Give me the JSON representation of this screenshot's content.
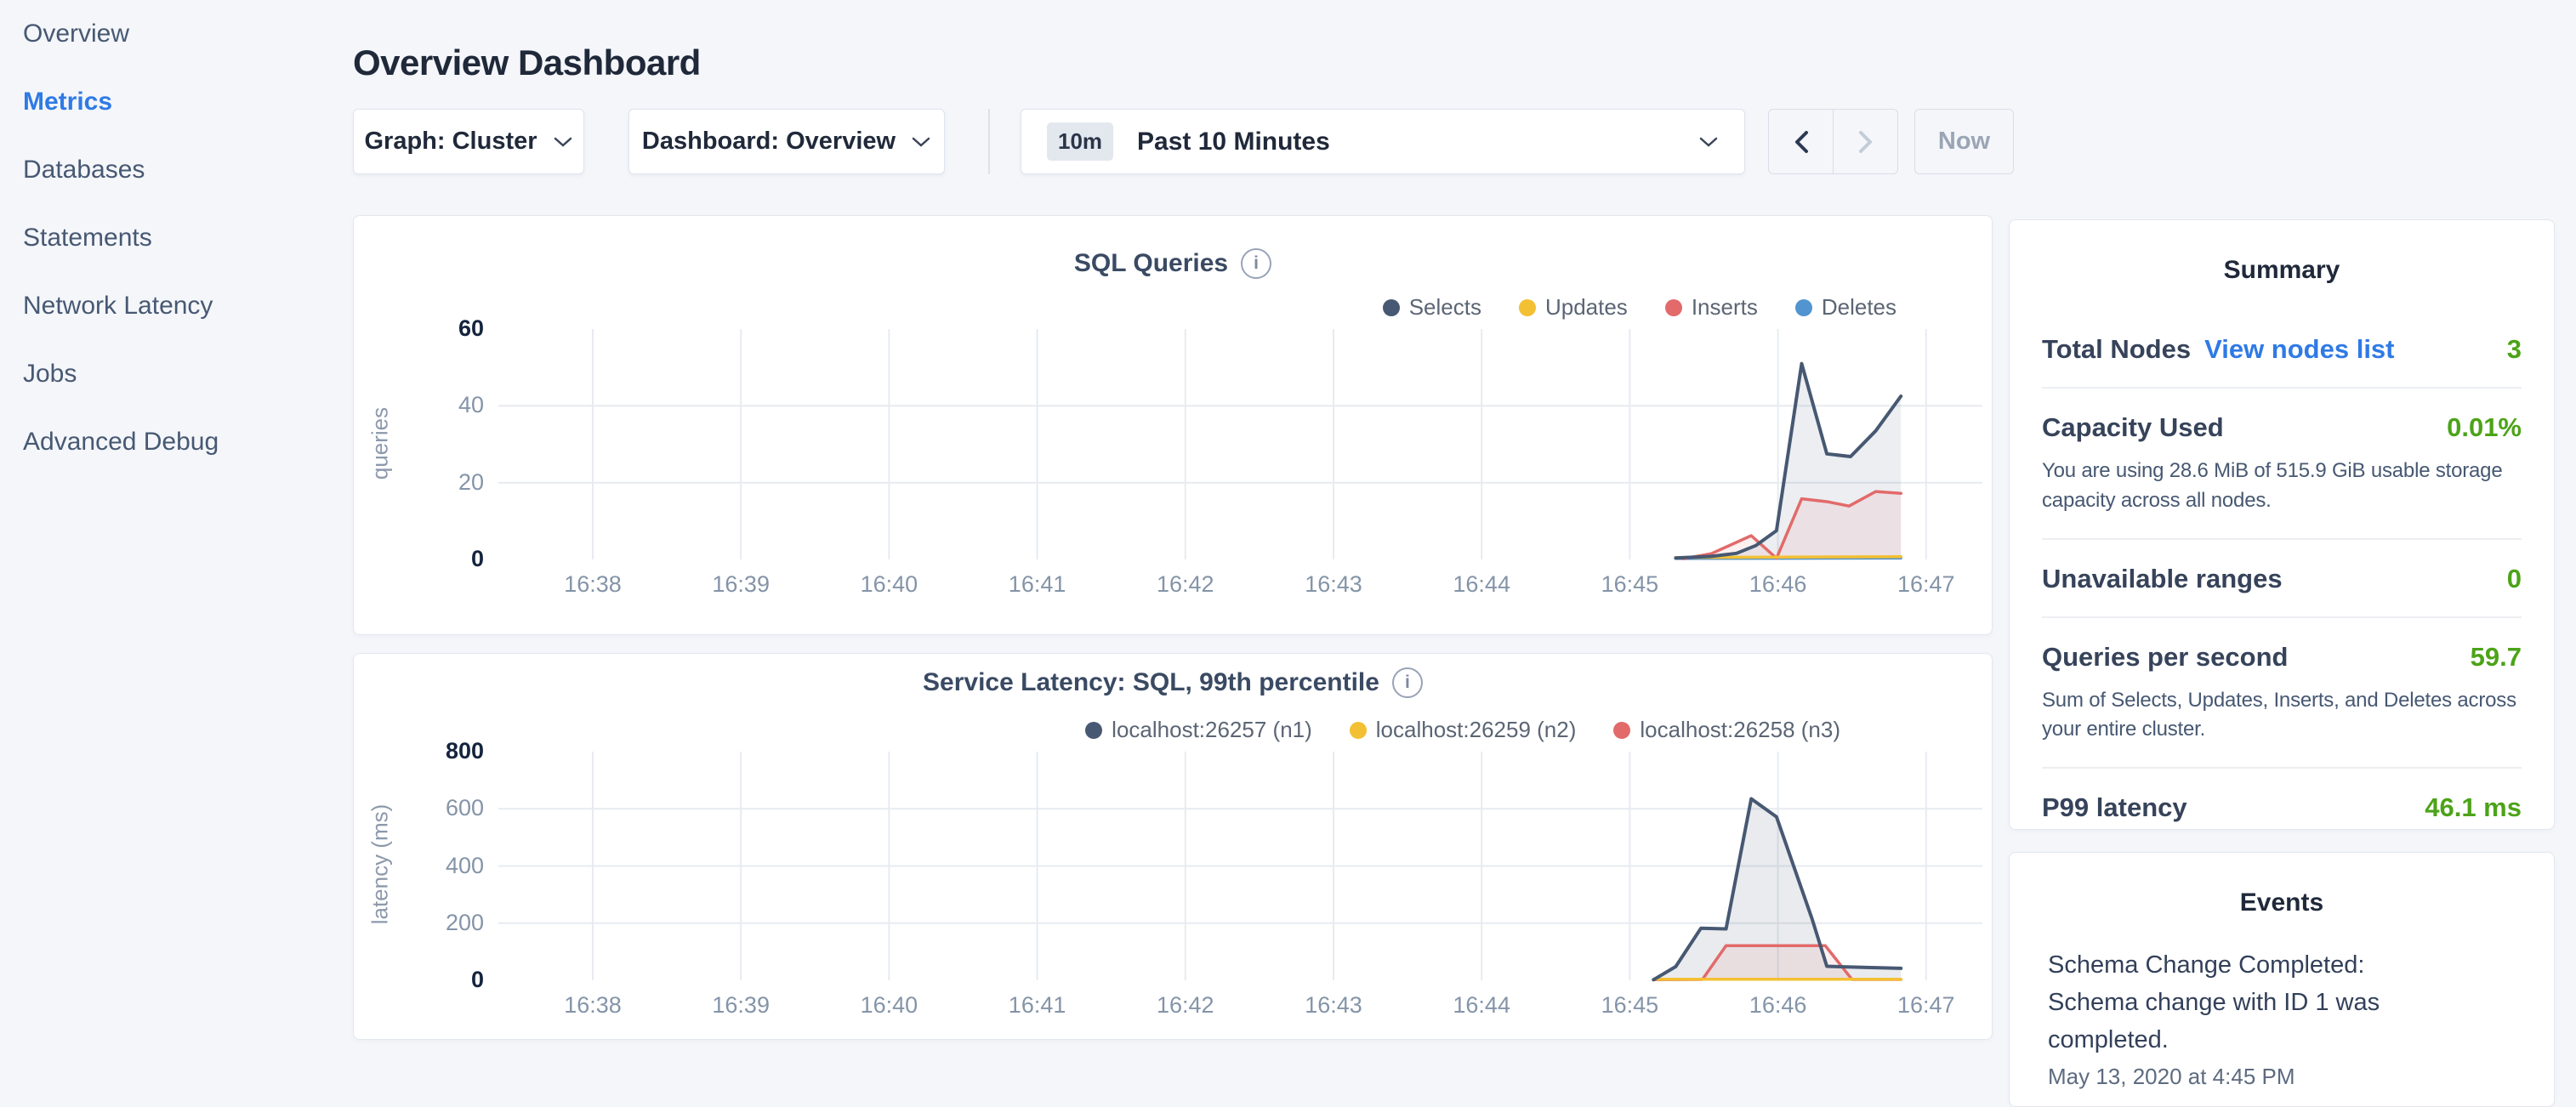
{
  "colors": {
    "page_bg": "#f4f6fa",
    "accent_blue": "#2f7ae5",
    "success_green": "#4ca318",
    "slate_text": "#475872",
    "grid_line": "#e7ebf1"
  },
  "sidebar": {
    "items": [
      {
        "label": "Overview",
        "active": false
      },
      {
        "label": "Metrics",
        "active": true
      },
      {
        "label": "Databases",
        "active": false
      },
      {
        "label": "Statements",
        "active": false
      },
      {
        "label": "Network Latency",
        "active": false
      },
      {
        "label": "Jobs",
        "active": false
      },
      {
        "label": "Advanced Debug",
        "active": false
      }
    ]
  },
  "header": {
    "title": "Overview Dashboard"
  },
  "toolbar": {
    "graph_dropdown": "Graph: Cluster",
    "dashboard_dropdown": "Dashboard: Overview",
    "time_badge": "10m",
    "time_label": "Past 10 Minutes",
    "now_label": "Now"
  },
  "chart_data": [
    {
      "type": "area",
      "title": "SQL Queries",
      "ylabel": "queries",
      "xlabel": "",
      "ylim": [
        0,
        60
      ],
      "y_ticks": [
        0,
        20,
        40,
        60
      ],
      "x_ticks": [
        "16:38",
        "16:39",
        "16:40",
        "16:41",
        "16:42",
        "16:43",
        "16:44",
        "16:45",
        "16:46",
        "16:47"
      ],
      "grid": true,
      "legend_position": "top-right",
      "series": [
        {
          "name": "Selects",
          "color": "#475872",
          "fill": "rgba(71,88,114,0.10)",
          "points": [
            [
              45.31,
              0.4
            ],
            [
              45.55,
              0.8
            ],
            [
              45.72,
              1.6
            ],
            [
              45.85,
              3.6
            ],
            [
              45.99,
              7.5
            ],
            [
              46.16,
              51
            ],
            [
              46.33,
              27.5
            ],
            [
              46.49,
              26.8
            ],
            [
              46.66,
              33.5
            ],
            [
              46.83,
              42.5
            ]
          ]
        },
        {
          "name": "Updates",
          "color": "#f3c033",
          "points": [
            [
              45.31,
              0.5
            ],
            [
              46.83,
              0.7
            ]
          ]
        },
        {
          "name": "Inserts",
          "color": "#e26a6a",
          "fill": "rgba(226,106,106,0.10)",
          "points": [
            [
              45.36,
              0.2
            ],
            [
              45.55,
              1.5
            ],
            [
              45.82,
              6.2
            ],
            [
              45.99,
              0.3
            ],
            [
              46.16,
              15.8
            ],
            [
              46.34,
              15.0
            ],
            [
              46.48,
              13.9
            ],
            [
              46.66,
              17.7
            ],
            [
              46.83,
              17.2
            ]
          ]
        },
        {
          "name": "Deletes",
          "color": "#5294cf",
          "points": [
            [
              45.31,
              0.25
            ],
            [
              46.83,
              0.35
            ]
          ]
        }
      ]
    },
    {
      "type": "area",
      "title": "Service Latency: SQL, 99th percentile",
      "ylabel": "latency (ms)",
      "xlabel": "",
      "ylim": [
        0,
        800
      ],
      "y_ticks": [
        0,
        200,
        400,
        600,
        800
      ],
      "x_ticks": [
        "16:38",
        "16:39",
        "16:40",
        "16:41",
        "16:42",
        "16:43",
        "16:44",
        "16:45",
        "16:46",
        "16:47"
      ],
      "grid": true,
      "legend_position": "top-right",
      "series": [
        {
          "name": "localhost:26257 (n1)",
          "color": "#475872",
          "fill": "rgba(71,88,114,0.12)",
          "points": [
            [
              45.16,
              2
            ],
            [
              45.31,
              48
            ],
            [
              45.48,
              182
            ],
            [
              45.65,
              180
            ],
            [
              45.82,
              635
            ],
            [
              45.99,
              572
            ],
            [
              46.23,
              215
            ],
            [
              46.33,
              49
            ],
            [
              46.6,
              45
            ],
            [
              46.83,
              42
            ]
          ]
        },
        {
          "name": "localhost:26259 (n2)",
          "color": "#f3c033",
          "points": [
            [
              45.16,
              4
            ],
            [
              46.83,
              4
            ]
          ]
        },
        {
          "name": "localhost:26258 (n3)",
          "color": "#e26a6a",
          "fill": "rgba(226,106,106,0.10)",
          "points": [
            [
              45.16,
              2
            ],
            [
              45.49,
              3
            ],
            [
              45.65,
              121
            ],
            [
              46.32,
              121
            ],
            [
              46.5,
              3
            ],
            [
              46.83,
              3
            ]
          ]
        }
      ]
    }
  ],
  "summary": {
    "title": "Summary",
    "rows": [
      {
        "label": "Total Nodes",
        "link": "View nodes list",
        "value": "3"
      },
      {
        "label": "Capacity Used",
        "value": "0.01%",
        "description": "You are using 28.6 MiB of 515.9 GiB usable storage capacity across all nodes."
      },
      {
        "label": "Unavailable ranges",
        "value": "0"
      },
      {
        "label": "Queries per second",
        "value": "59.7",
        "description": "Sum of Selects, Updates, Inserts, and Deletes across your entire cluster."
      },
      {
        "label": "P99 latency",
        "value": "46.1 ms"
      }
    ]
  },
  "events": {
    "title": "Events",
    "items": [
      {
        "message": "Schema Change Completed: Schema change with ID 1 was completed.",
        "timestamp": "May 13, 2020 at 4:45 PM"
      }
    ]
  }
}
